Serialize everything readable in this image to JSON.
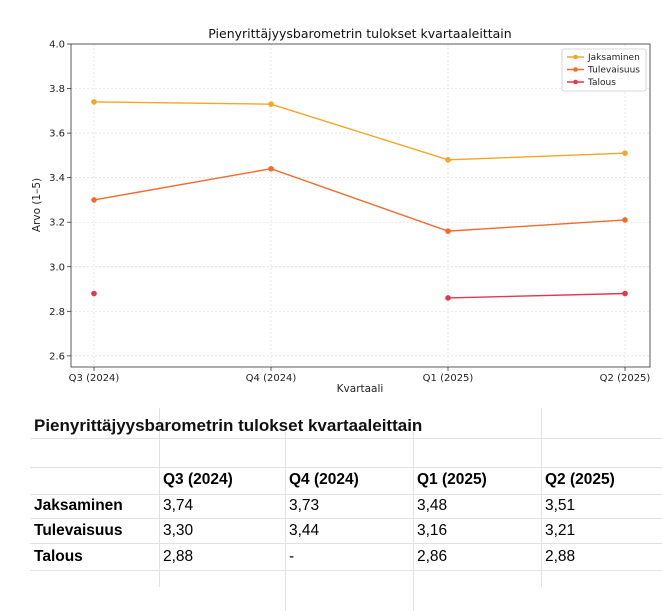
{
  "chart_data": {
    "type": "line",
    "title": "Pienyrittäjyysbarometrin tulokset kvartaaleittain",
    "xlabel": "Kvartaali",
    "ylabel": "Arvo (1–5)",
    "categories": [
      "Q3 (2024)",
      "Q4 (2024)",
      "Q1 (2025)",
      "Q2 (2025)"
    ],
    "ylim": [
      2.55,
      4.0
    ],
    "yticks": [
      "2.6",
      "2.8",
      "3.0",
      "3.2",
      "3.4",
      "3.6",
      "3.8",
      "4.0"
    ],
    "grid": true,
    "legend_position": "top-right",
    "series": [
      {
        "name": "Jaksaminen",
        "color": "#f5a623",
        "values": [
          3.74,
          3.73,
          3.48,
          3.51
        ]
      },
      {
        "name": "Tulevaisuus",
        "color": "#f26b2d",
        "values": [
          3.3,
          3.44,
          3.16,
          3.21
        ]
      },
      {
        "name": "Talous",
        "color": "#e8344e",
        "values": [
          2.88,
          null,
          2.86,
          2.88
        ]
      }
    ]
  },
  "table": {
    "title": "Pienyrittäjyysbarometrin tulokset kvartaaleittain",
    "headers": [
      "",
      "Q3 (2024)",
      "Q4 (2024)",
      "Q1 (2025)",
      "Q2 (2025)"
    ],
    "rows": [
      {
        "label": "Jaksaminen",
        "cells": [
          "3,74",
          "3,73",
          "3,48",
          "3,51"
        ]
      },
      {
        "label": "Tulevaisuus",
        "cells": [
          "3,30",
          "3,44",
          "3,16",
          "3,21"
        ]
      },
      {
        "label": "Talous",
        "cells": [
          "2,88",
          "-",
          "2,86",
          "2,88"
        ]
      }
    ]
  }
}
